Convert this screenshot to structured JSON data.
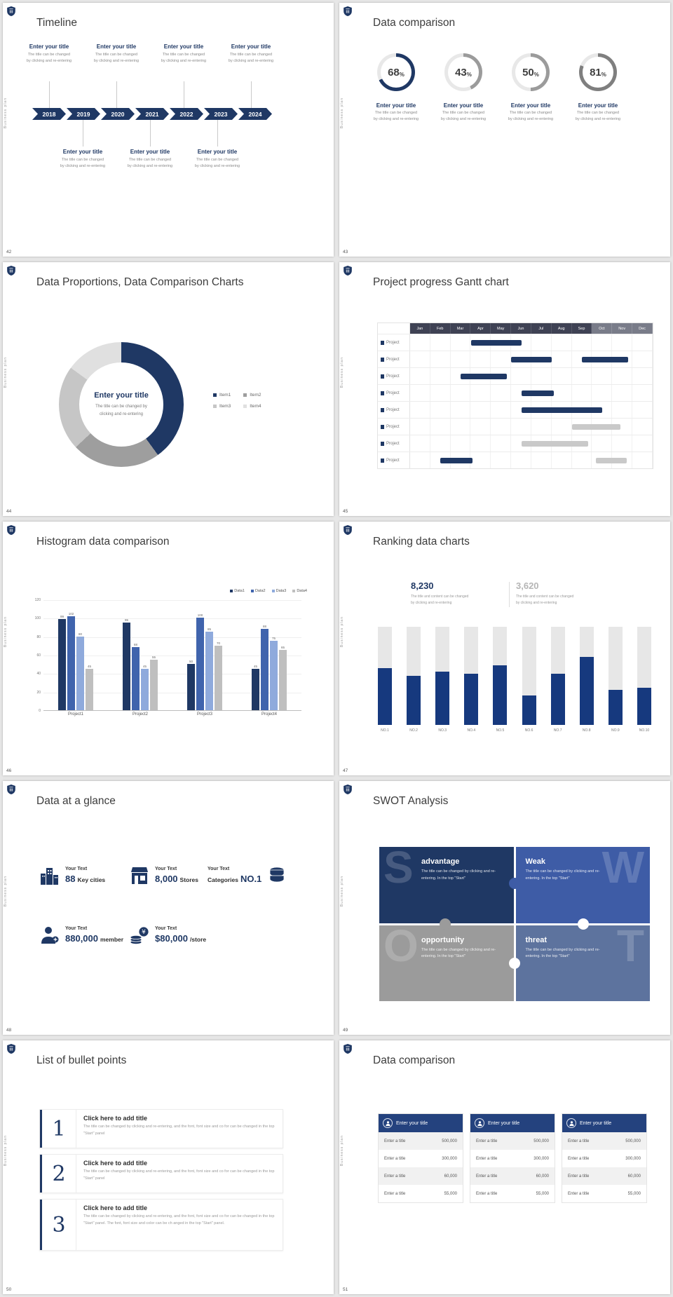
{
  "chrome": {
    "sidebar_text": "Business plan"
  },
  "slides": [
    {
      "number": "42",
      "title": "Timeline",
      "entry_title": "Enter your title",
      "entry_line1": "The title can be changed",
      "entry_line2": "by clicking and re-entering",
      "years": [
        "2018",
        "2019",
        "2020",
        "2021",
        "2022",
        "2023",
        "2024"
      ]
    },
    {
      "number": "43",
      "title": "Data comparison",
      "pct_sign": "%",
      "entry_title": "Enter your title",
      "entry_line1": "The title can be changed",
      "entry_line2": "by clicking and re-entering",
      "rings": [
        {
          "value": "68",
          "pct": 68,
          "color": "#1f3864"
        },
        {
          "value": "43",
          "pct": 43,
          "color": "#9b9b9b"
        },
        {
          "value": "50",
          "pct": 50,
          "color": "#9b9b9b"
        },
        {
          "value": "81",
          "pct": 81,
          "color": "#7f7f7f"
        }
      ]
    },
    {
      "number": "44",
      "title": "Data Proportions, Data Comparison Charts",
      "center_title": "Enter your title",
      "center_line1": "The title can be changed by",
      "center_line2": "clicking and re-entering",
      "chart_data": {
        "type": "pie",
        "labels": [
          "Item1",
          "Item2",
          "Item3",
          "Item4"
        ],
        "values": [
          40,
          23,
          22,
          15
        ],
        "colors": [
          "#1f3864",
          "#9e9e9e",
          "#c6c6c6",
          "#e0e0e0"
        ]
      }
    },
    {
      "number": "45",
      "title": "Project progress Gantt chart",
      "chart_data": {
        "type": "gantt",
        "months": [
          "Jan",
          "Feb",
          "Mar",
          "Apr",
          "May",
          "Jun",
          "Jul",
          "Aug",
          "Sep",
          "Oct",
          "Nov",
          "Dec"
        ],
        "row_label": "Project",
        "rows": 8,
        "bars": [
          {
            "row": 0,
            "start": 3,
            "span": 2.5,
            "color": "blue"
          },
          {
            "row": 1,
            "start": 5,
            "span": 2,
            "color": "blue"
          },
          {
            "row": 1,
            "start": 8.5,
            "span": 2.3,
            "color": "blue"
          },
          {
            "row": 2,
            "start": 2.5,
            "span": 2.3,
            "color": "blue"
          },
          {
            "row": 3,
            "start": 5.5,
            "span": 1.6,
            "color": "blue"
          },
          {
            "row": 4,
            "start": 5.5,
            "span": 4,
            "color": "blue"
          },
          {
            "row": 5,
            "start": 8,
            "span": 2.4,
            "color": "gray"
          },
          {
            "row": 6,
            "start": 5.5,
            "span": 3.3,
            "color": "gray"
          },
          {
            "row": 7,
            "start": 1.5,
            "span": 1.6,
            "color": "blue"
          },
          {
            "row": 7,
            "start": 9.2,
            "span": 1.5,
            "color": "gray"
          }
        ]
      }
    },
    {
      "number": "46",
      "title": "Histogram data comparison",
      "chart_data": {
        "type": "bar",
        "categories": [
          "Project1",
          "Project2",
          "Project3",
          "Project4"
        ],
        "series": [
          {
            "name": "Data1",
            "color": "#1f3864",
            "values": [
              99,
              95,
              50,
              45
            ]
          },
          {
            "name": "Data2",
            "color": "#4064ad",
            "values": [
              102,
              68,
              100,
              88
            ]
          },
          {
            "name": "Data3",
            "color": "#8faadc",
            "values": [
              80,
              45,
              85,
              75
            ]
          },
          {
            "name": "Data4",
            "color": "#bfbfbf",
            "values": [
              45,
              55,
              70,
              65
            ]
          }
        ],
        "ylim": [
          0,
          120
        ],
        "yticks": [
          0,
          20,
          40,
          60,
          80,
          100,
          120
        ]
      }
    },
    {
      "number": "47",
      "title": "Ranking data charts",
      "stat_primary": {
        "value": "8,230",
        "line1": "The title and content can be changed",
        "line2": "by clicking and re-entering"
      },
      "stat_secondary": {
        "value": "3,620",
        "line1": "The title and content can be changed",
        "line2": "by clicking and re-entering"
      },
      "chart_data": {
        "type": "bar",
        "categories": [
          "NO.1",
          "NO.2",
          "NO.3",
          "NO.4",
          "NO.5",
          "NO.6",
          "NO.7",
          "NO.8",
          "NO.9",
          "NO.10"
        ],
        "values": [
          58,
          50,
          54,
          52,
          61,
          30,
          52,
          69,
          36,
          38
        ],
        "max": 100
      }
    },
    {
      "number": "48",
      "title": "Data at a glance",
      "items": [
        {
          "icon": "city-buildings-icon",
          "label": "Your Text",
          "value": "88",
          "unit": "Key cities"
        },
        {
          "icon": "store-icon",
          "label": "Your Text",
          "value": "8,000",
          "unit": "Stores"
        },
        {
          "icon": "category-boxes-icon",
          "label": "Your Text",
          "prefix": "Categories",
          "value": "NO.1"
        },
        {
          "icon": "member-icon",
          "label": "Your Text",
          "value": "880,000",
          "unit": "member"
        },
        {
          "icon": "coins-icon",
          "label": "Your Text",
          "value": "$80,000",
          "unit": "/store"
        }
      ]
    },
    {
      "number": "49",
      "title": "SWOT Analysis",
      "pieces": [
        {
          "letter": "S",
          "heading": "advantage",
          "body": "The title can be changed by clicking and re-entering. In the top \"Start\"",
          "color": "#1f3864"
        },
        {
          "letter": "W",
          "heading": "Weak",
          "body": "The title can be changed by clicking and re-entering. In the top \"Start\"",
          "color": "#3e5ca6"
        },
        {
          "letter": "O",
          "heading": "opportunity",
          "body": "The title can be changed by clicking and re-entering. In the top \"Start\"",
          "color": "#9b9b9b"
        },
        {
          "letter": "T",
          "heading": "threat",
          "body": "The title can be changed by clicking and re-entering. In the top \"Start\"",
          "color": "#5d739e"
        }
      ]
    },
    {
      "number": "50",
      "title": "List of bullet points",
      "items": [
        {
          "num": "1",
          "heading": "Click here to add title",
          "body": "The title can be changed by clicking and re-entering, and the font, font size and co for can be changed in the top \"Start\" panel"
        },
        {
          "num": "2",
          "heading": "Click here to add title",
          "body": "The title can be changed by clicking and re-entering, and the font, font size and co for can be changed in the top \"Start\" panel"
        },
        {
          "num": "3",
          "heading": "Click here to add title",
          "body": "The title can be changed by clicking and re-entering, and the font, font size and co for can be changed in the top \"Start\" panel. The font, font size and color can be ch anged in the top \"Start\" panel."
        }
      ]
    },
    {
      "number": "51",
      "title": "Data comparison",
      "header_title": "Enter your title",
      "row_label": "Enter a title",
      "values": [
        "500,000",
        "300,000",
        "60,000",
        "55,000"
      ]
    }
  ]
}
